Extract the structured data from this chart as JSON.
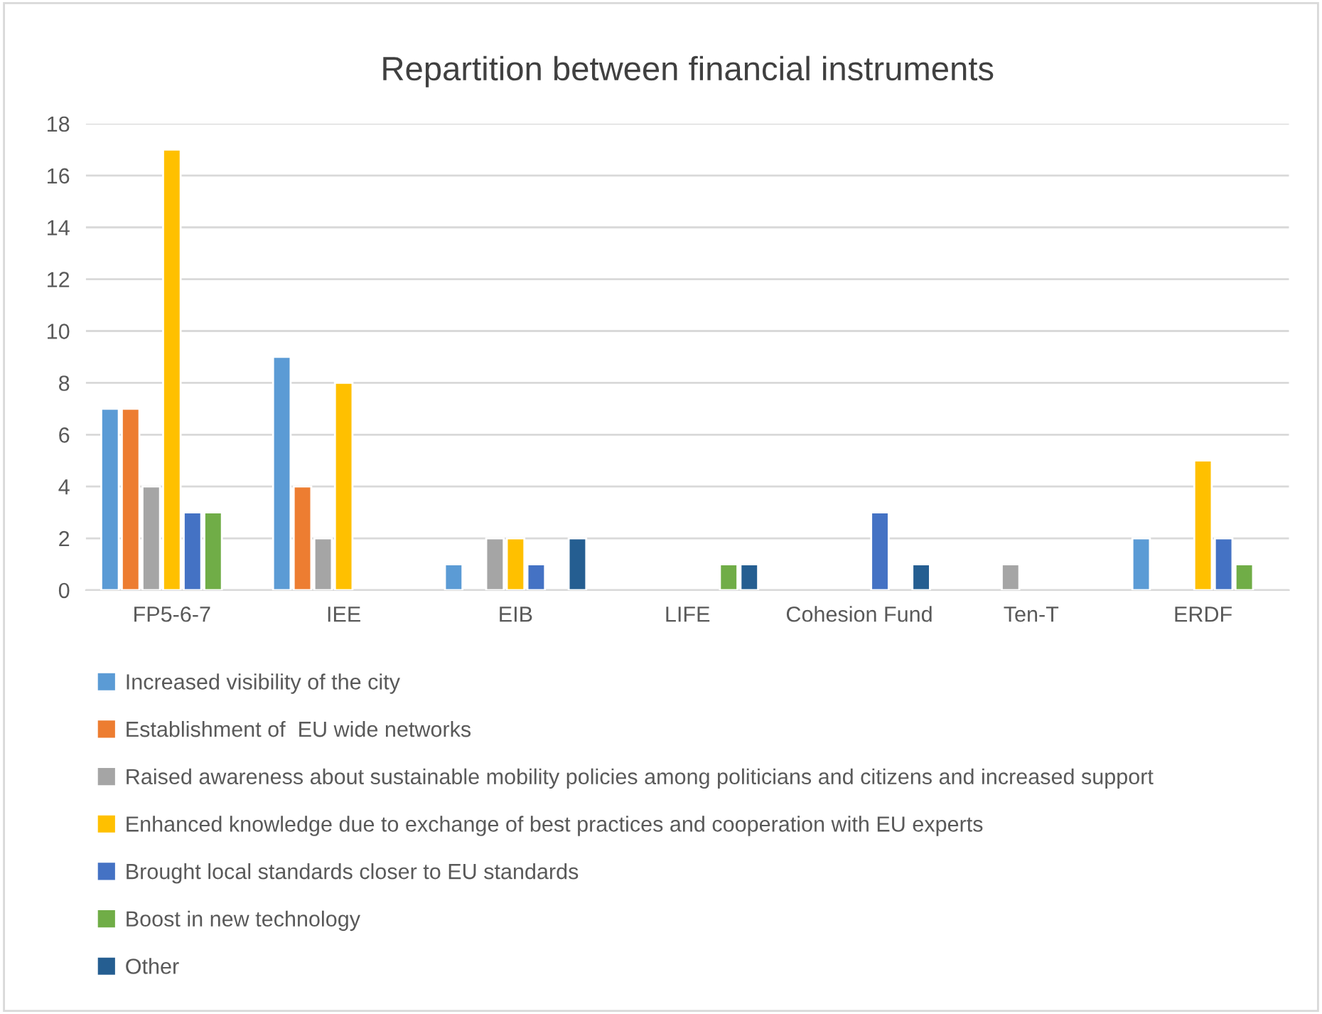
{
  "chart_data": {
    "type": "bar",
    "title": "Repartition between financial instruments",
    "categories": [
      "FP5-6-7",
      "IEE",
      "EIB",
      "LIFE",
      "Cohesion Fund",
      "Ten-T",
      "ERDF"
    ],
    "series": [
      {
        "name": "Increased visibility of the city",
        "color": "#5b9bd5",
        "values": [
          7,
          9,
          1,
          null,
          null,
          null,
          2
        ]
      },
      {
        "name": "Establishment of  EU wide networks",
        "color": "#ed7d31",
        "values": [
          7,
          4,
          null,
          null,
          null,
          null,
          null
        ]
      },
      {
        "name": "Raised awareness about sustainable mobility policies among politicians and citizens and increased support",
        "color": "#a5a5a5",
        "values": [
          4,
          2,
          2,
          null,
          null,
          1,
          null
        ]
      },
      {
        "name": "Enhanced knowledge due to exchange of best practices and cooperation with EU experts",
        "color": "#ffc000",
        "values": [
          17,
          8,
          2,
          null,
          null,
          null,
          5
        ]
      },
      {
        "name": "Brought local standards closer to EU standards",
        "color": "#4472c4",
        "values": [
          3,
          null,
          1,
          null,
          3,
          null,
          2
        ]
      },
      {
        "name": "Boost in new technology",
        "color": "#70ad47",
        "values": [
          3,
          null,
          null,
          1,
          null,
          null,
          1
        ]
      },
      {
        "name": "Other",
        "color": "#255e91",
        "values": [
          null,
          null,
          2,
          1,
          1,
          null,
          null
        ]
      }
    ],
    "ylim": [
      0,
      18
    ],
    "yticks": [
      0,
      2,
      4,
      6,
      8,
      10,
      12,
      14,
      16,
      18
    ],
    "grid": "y",
    "legend": "bottom"
  }
}
